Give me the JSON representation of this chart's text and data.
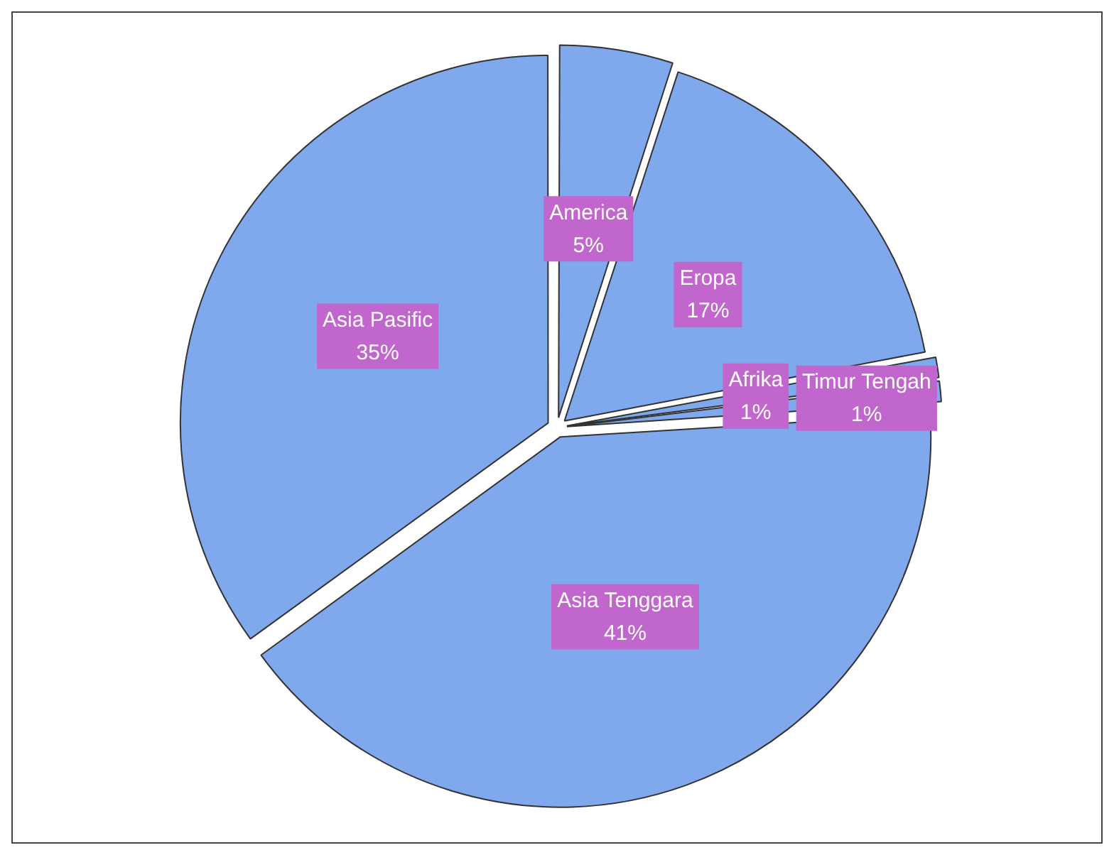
{
  "chart_data": {
    "type": "pie",
    "categories": [
      "America",
      "Eropa",
      "Afrika",
      "Timur Tengah",
      "Asia Tenggara",
      "Asia Pasific"
    ],
    "values": [
      5,
      17,
      1,
      1,
      41,
      35
    ],
    "value_labels": [
      "5%",
      "17%",
      "1%",
      "1%",
      "41%",
      "35%"
    ],
    "colors": [
      "#80a8ec",
      "#80a8ec",
      "#80a8ec",
      "#80a8ec",
      "#80a8ec",
      "#80a8ec"
    ],
    "legend": false
  }
}
